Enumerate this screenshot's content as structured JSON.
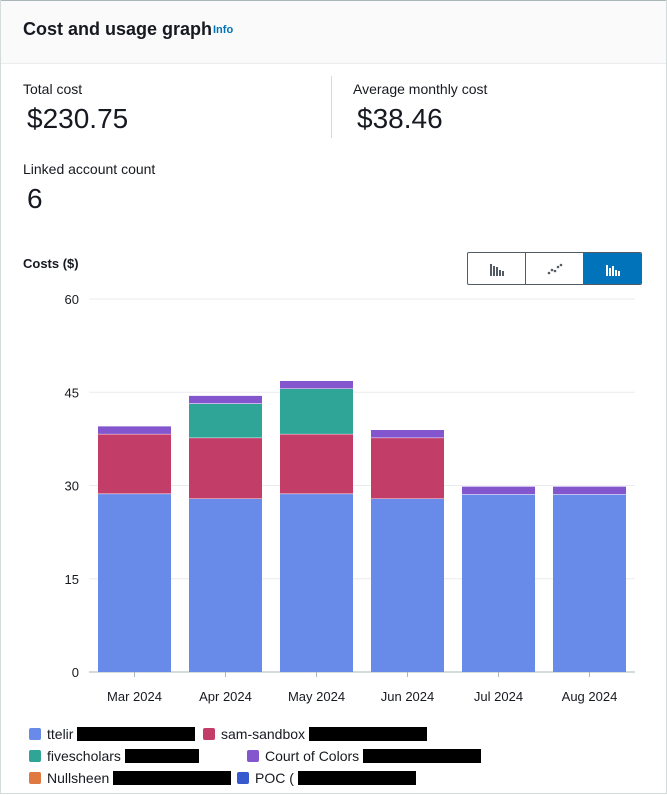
{
  "header": {
    "title": "Cost and usage graph",
    "info": "Info"
  },
  "kpis": {
    "total_cost": {
      "label": "Total cost",
      "value": "$230.75"
    },
    "avg_monthly_cost": {
      "label": "Average monthly cost",
      "value": "$38.46"
    },
    "linked_account_count": {
      "label": "Linked account count",
      "value": "6"
    }
  },
  "chart_toggle": {
    "options": [
      "bar-chart-icon",
      "line-chart-icon",
      "stacked-bar-chart-icon"
    ],
    "active": "stacked-bar-chart-icon"
  },
  "chart_data": {
    "type": "bar",
    "stacked": true,
    "title": "",
    "ylabel": "Costs ($)",
    "xlabel": "",
    "ylim": [
      0,
      60
    ],
    "yticks": [
      0,
      15,
      30,
      45,
      60
    ],
    "grid": true,
    "categories": [
      "Mar 2024",
      "Apr 2024",
      "May 2024",
      "Jun 2024",
      "Jul 2024",
      "Aug 2024"
    ],
    "series": [
      {
        "name": "ttelir",
        "color": "#688ae8",
        "values": [
          28.7,
          27.9,
          28.7,
          27.9,
          28.6,
          28.6
        ]
      },
      {
        "name": "sam-sandbox",
        "color": "#c33d69",
        "values": [
          9.6,
          9.8,
          9.6,
          9.8,
          0,
          0
        ]
      },
      {
        "name": "fivescholars",
        "color": "#2ea597",
        "values": [
          0,
          5.5,
          7.3,
          0,
          0,
          0
        ]
      },
      {
        "name": "Court of Colors",
        "color": "#8456ce",
        "values": [
          1.3,
          1.3,
          1.3,
          1.3,
          1.3,
          1.3
        ]
      },
      {
        "name": "Nullsheen",
        "color": "#e07941",
        "values": [
          0,
          0,
          0,
          0,
          0,
          0
        ]
      },
      {
        "name": "POC (",
        "color": "#3759ce",
        "values": [
          0,
          0,
          0,
          0,
          0,
          0
        ]
      }
    ],
    "legend_position": "bottom"
  }
}
